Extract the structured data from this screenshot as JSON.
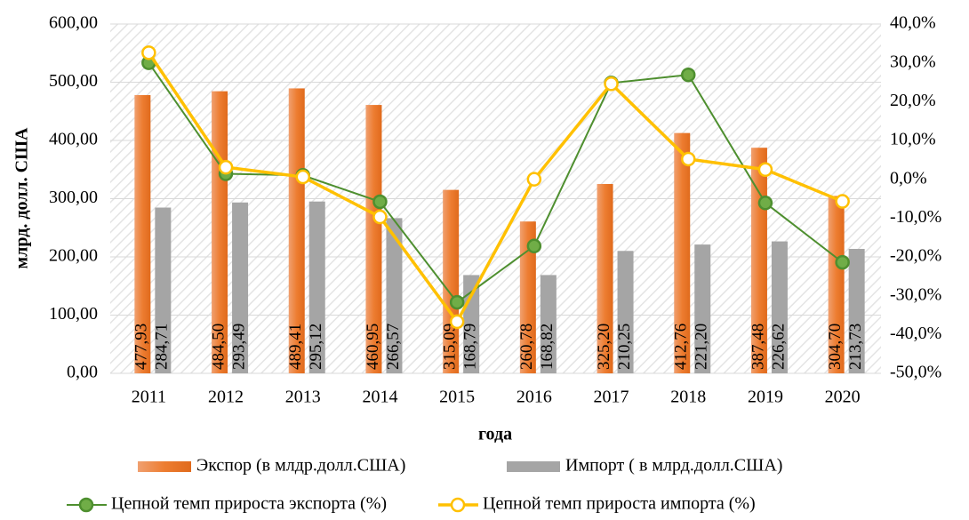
{
  "chart_data": {
    "type": "bar",
    "categories": [
      "2011",
      "2012",
      "2013",
      "2014",
      "2015",
      "2016",
      "2017",
      "2018",
      "2019",
      "2020"
    ],
    "x_label": "года",
    "y_label": "млрд. долл. США",
    "series": [
      {
        "name": "Экспор (в млдр.долл.США)",
        "type": "bar",
        "color": "#ed7d31",
        "values": [
          477.93,
          484.5,
          489.41,
          460.95,
          315.09,
          260.78,
          325.2,
          412.76,
          387.48,
          304.7
        ],
        "value_labels": [
          "477,93",
          "484,50",
          "489,41",
          "460,95",
          "315,09",
          "260,78",
          "325,20",
          "412,76",
          "387,48",
          "304,70"
        ]
      },
      {
        "name": "Импорт ( в млрд.долл.США)",
        "type": "bar",
        "color": "#a5a5a5",
        "values": [
          284.71,
          293.49,
          295.12,
          266.57,
          168.79,
          168.82,
          210.25,
          221.2,
          226.62,
          213.73
        ],
        "value_labels": [
          "284,71",
          "293,49",
          "295,12",
          "266,57",
          "168,79",
          "168,82",
          "210,25",
          "221,20",
          "226,62",
          "213,73"
        ]
      },
      {
        "name": "Цепной темп прироста экспорта (%)",
        "type": "line",
        "axis": "y2",
        "color": "#4e8f2f",
        "marker_color": "#70ad47",
        "values": [
          30.0,
          1.4,
          1.0,
          -5.8,
          -31.7,
          -17.2,
          24.8,
          26.9,
          -6.1,
          -21.4
        ]
      },
      {
        "name": "Цепной темп прироста импорта (%)",
        "type": "line",
        "axis": "y2",
        "color": "#ffc000",
        "marker_color": "#ffffff",
        "values": [
          32.6,
          3.1,
          0.6,
          -9.7,
          -36.7,
          0.0,
          24.6,
          5.2,
          2.5,
          -5.7
        ]
      }
    ],
    "ylim": [
      0,
      600
    ],
    "yticks": [
      {
        "value": 0,
        "label": "0,00"
      },
      {
        "value": 100,
        "label": "100,00"
      },
      {
        "value": 200,
        "label": "200,00"
      },
      {
        "value": 300,
        "label": "300,00"
      },
      {
        "value": 400,
        "label": "400,00"
      },
      {
        "value": 500,
        "label": "500,00"
      },
      {
        "value": 600,
        "label": "600,00"
      }
    ],
    "y2lim": [
      -50,
      40
    ],
    "y2ticks": [
      {
        "value": -50,
        "label": "-50,0%"
      },
      {
        "value": -40,
        "label": "-40,0%"
      },
      {
        "value": -30,
        "label": "-30,0%"
      },
      {
        "value": -20,
        "label": "-20,0%"
      },
      {
        "value": -10,
        "label": "-10,0%"
      },
      {
        "value": 0,
        "label": "0,0%"
      },
      {
        "value": 10,
        "label": "10,0%"
      },
      {
        "value": 20,
        "label": "20,0%"
      },
      {
        "value": 30,
        "label": "30,0%"
      },
      {
        "value": 40,
        "label": "40,0%"
      }
    ],
    "grid": true
  }
}
